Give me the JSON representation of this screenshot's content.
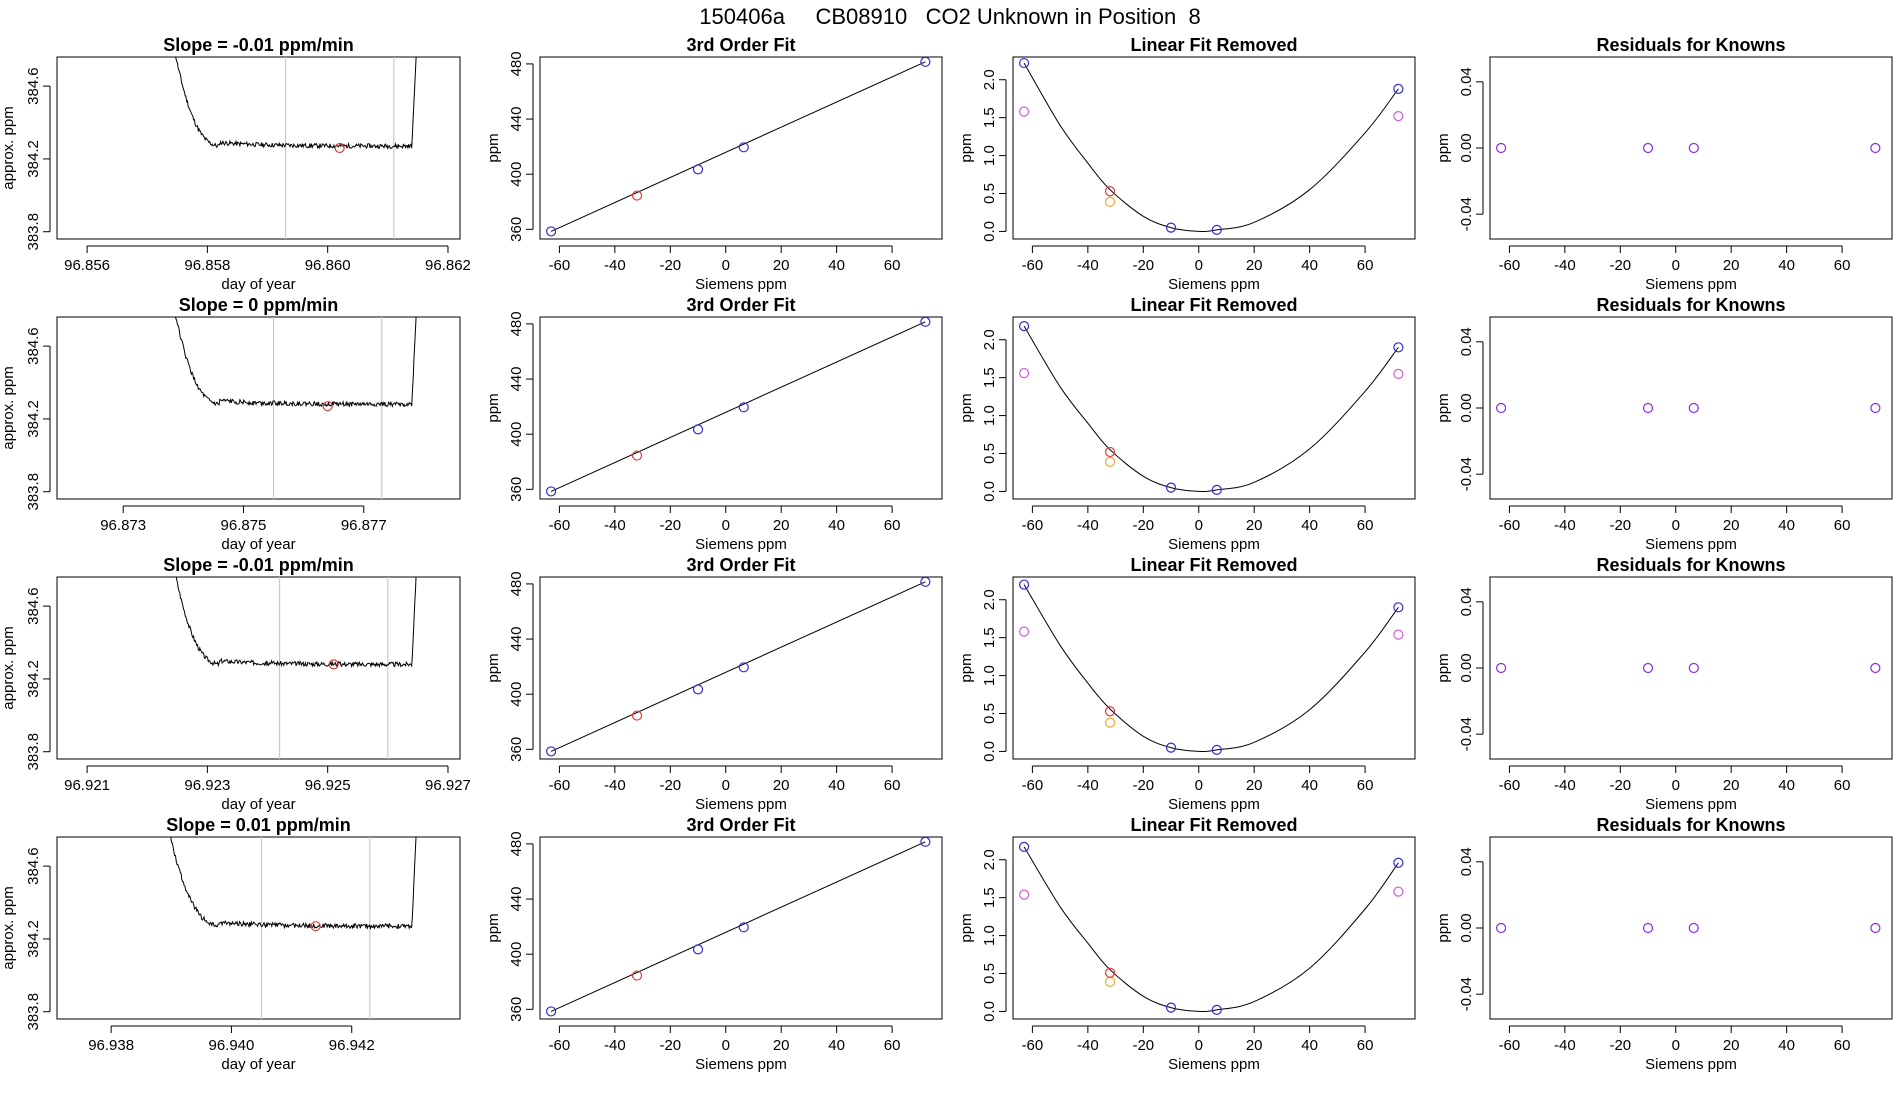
{
  "page": {
    "title": "150406a     CB08910   CO2 Unknown in Position  8"
  },
  "colors": {
    "axis": "#000000",
    "trace": "#000000",
    "vline": "#c8c8c8",
    "red": "#e33b3b",
    "blue": "#2f2fd0",
    "orange": "#f0a830",
    "magenta": "#d060e0",
    "purple": "#8a2be2"
  },
  "chart_data": [
    {
      "type": "line",
      "row": 0,
      "col": 0,
      "panel": "timeseries",
      "title": "Slope =  -0.01  ppm/min",
      "xlabel": "day of year",
      "ylabel": "approx. ppm",
      "xlim": [
        96.8555,
        96.8622
      ],
      "ylim": [
        383.76,
        384.76
      ],
      "xticks": [
        96.856,
        96.858,
        96.86,
        96.862
      ],
      "xtick_labels": [
        "96.856",
        "96.858",
        "96.860",
        "96.862"
      ],
      "yticks": [
        383.8,
        384.2,
        384.6
      ],
      "ytick_labels": [
        "383.8",
        "384.2",
        "384.6"
      ],
      "trace_start": 96.8574,
      "trace_end": 96.8615,
      "plateau_start": 96.8582,
      "rise_start": 96.8614,
      "plateau": 384.27,
      "vlines": [
        96.8593,
        96.8611
      ],
      "marker": {
        "x": 96.8602,
        "y": 384.26
      }
    },
    {
      "type": "scatter",
      "row": 0,
      "col": 1,
      "panel": "fit3",
      "title": "3rd Order Fit",
      "xlabel": "Siemens ppm",
      "ylabel": "ppm",
      "xlim": [
        -67,
        78
      ],
      "ylim": [
        353,
        485
      ],
      "xticks": [
        -60,
        -40,
        -20,
        0,
        20,
        40,
        60
      ],
      "xtick_labels": [
        "-60",
        "-40",
        "-20",
        "0",
        "20",
        "40",
        "60"
      ],
      "yticks": [
        360,
        400,
        440,
        480
      ],
      "ytick_labels": [
        "360",
        "400",
        "440",
        "480"
      ],
      "line": {
        "x": [
          -63,
          72
        ],
        "y": [
          358.5,
          481.5
        ]
      },
      "points_blue": {
        "x": [
          -63,
          -10,
          6.5,
          72
        ],
        "y": [
          358.5,
          403.5,
          419.5,
          481.5
        ]
      },
      "points_red": {
        "x": [
          -32
        ],
        "y": [
          384.5
        ]
      }
    },
    {
      "type": "scatter",
      "row": 0,
      "col": 2,
      "panel": "linfit",
      "title": "Linear Fit Removed",
      "xlabel": "Siemens ppm",
      "ylabel": "ppm",
      "xlim": [
        -67,
        78
      ],
      "ylim": [
        -0.1,
        2.3
      ],
      "xticks": [
        -60,
        -40,
        -20,
        0,
        20,
        40,
        60
      ],
      "xtick_labels": [
        "-60",
        "-40",
        "-20",
        "0",
        "20",
        "40",
        "60"
      ],
      "yticks": [
        0,
        0.5,
        1,
        1.5,
        2
      ],
      "ytick_labels": [
        "0.0",
        "0.5",
        "1.0",
        "1.5",
        "2.0"
      ],
      "curve": {
        "x": [
          -63,
          -50,
          -40,
          -32,
          -20,
          -10,
          0,
          6.5,
          20,
          40,
          60,
          72
        ],
        "y": [
          2.22,
          1.4,
          0.9,
          0.55,
          0.2,
          0.05,
          0.0,
          0.02,
          0.12,
          0.55,
          1.3,
          1.88
        ]
      },
      "points_blue": {
        "x": [
          -63,
          -10,
          6.5,
          72
        ],
        "y": [
          2.22,
          0.05,
          0.02,
          1.88
        ]
      },
      "points_red": {
        "x": [
          -32
        ],
        "y": [
          0.53
        ]
      },
      "points_orange": {
        "x": [
          -32
        ],
        "y": [
          0.39
        ]
      },
      "points_magenta": {
        "x": [
          -63,
          72
        ],
        "y": [
          1.58,
          1.52
        ]
      }
    },
    {
      "type": "scatter",
      "row": 0,
      "col": 3,
      "panel": "resid",
      "title": "Residuals for Knowns",
      "xlabel": "Siemens ppm",
      "ylabel": "ppm",
      "xlim": [
        -67,
        78
      ],
      "ylim": [
        -0.055,
        0.055
      ],
      "xticks": [
        -60,
        -40,
        -20,
        0,
        20,
        40,
        60
      ],
      "xtick_labels": [
        "-60",
        "-40",
        "-20",
        "0",
        "20",
        "40",
        "60"
      ],
      "yticks": [
        -0.04,
        0,
        0.04
      ],
      "ytick_labels": [
        "-0.04",
        "0.00",
        "0.04"
      ],
      "points_purple": {
        "x": [
          -63,
          -10,
          6.5,
          72
        ],
        "y": [
          0,
          0,
          0,
          0
        ]
      }
    },
    {
      "type": "line",
      "row": 1,
      "col": 0,
      "panel": "timeseries",
      "title": "Slope =  0  ppm/min",
      "xlabel": "day of year",
      "ylabel": "approx. ppm",
      "xlim": [
        96.8719,
        96.8786
      ],
      "ylim": [
        383.76,
        384.76
      ],
      "xticks": [
        96.873,
        96.875,
        96.877
      ],
      "xtick_labels": [
        "96.873",
        "96.875",
        "96.877"
      ],
      "yticks": [
        383.8,
        384.2,
        384.6
      ],
      "ytick_labels": [
        "383.8",
        "384.2",
        "384.6"
      ],
      "trace_start": 96.8738,
      "trace_end": 96.8779,
      "plateau_start": 96.8746,
      "rise_start": 96.8778,
      "plateau": 384.28,
      "vlines": [
        96.8755,
        96.8773
      ],
      "marker": {
        "x": 96.8764,
        "y": 384.27
      }
    },
    {
      "type": "scatter",
      "row": 1,
      "col": 1,
      "panel": "fit3",
      "title": "3rd Order Fit",
      "xlabel": "Siemens ppm",
      "ylabel": "ppm",
      "xlim": [
        -67,
        78
      ],
      "ylim": [
        353,
        485
      ],
      "xticks": [
        -60,
        -40,
        -20,
        0,
        20,
        40,
        60
      ],
      "xtick_labels": [
        "-60",
        "-40",
        "-20",
        "0",
        "20",
        "40",
        "60"
      ],
      "yticks": [
        360,
        400,
        440,
        480
      ],
      "ytick_labels": [
        "360",
        "400",
        "440",
        "480"
      ],
      "line": {
        "x": [
          -63,
          72
        ],
        "y": [
          358.5,
          481.5
        ]
      },
      "points_blue": {
        "x": [
          -63,
          -10,
          6.5,
          72
        ],
        "y": [
          358.5,
          403.5,
          419.5,
          481.5
        ]
      },
      "points_red": {
        "x": [
          -32
        ],
        "y": [
          384.5
        ]
      }
    },
    {
      "type": "scatter",
      "row": 1,
      "col": 2,
      "panel": "linfit",
      "title": "Linear Fit Removed",
      "xlabel": "Siemens ppm",
      "ylabel": "ppm",
      "xlim": [
        -67,
        78
      ],
      "ylim": [
        -0.1,
        2.3
      ],
      "xticks": [
        -60,
        -40,
        -20,
        0,
        20,
        40,
        60
      ],
      "xtick_labels": [
        "-60",
        "-40",
        "-20",
        "0",
        "20",
        "40",
        "60"
      ],
      "yticks": [
        0,
        0.5,
        1,
        1.5,
        2
      ],
      "ytick_labels": [
        "0.0",
        "0.5",
        "1.0",
        "1.5",
        "2.0"
      ],
      "curve": {
        "x": [
          -63,
          -50,
          -40,
          -32,
          -20,
          -10,
          0,
          6.5,
          20,
          40,
          60,
          72
        ],
        "y": [
          2.18,
          1.38,
          0.9,
          0.55,
          0.2,
          0.05,
          0.0,
          0.02,
          0.12,
          0.56,
          1.32,
          1.9
        ]
      },
      "points_blue": {
        "x": [
          -63,
          -10,
          6.5,
          72
        ],
        "y": [
          2.18,
          0.05,
          0.02,
          1.9
        ]
      },
      "points_red": {
        "x": [
          -32
        ],
        "y": [
          0.52
        ]
      },
      "points_orange": {
        "x": [
          -32
        ],
        "y": [
          0.39
        ]
      },
      "points_magenta": {
        "x": [
          -63,
          72
        ],
        "y": [
          1.56,
          1.55
        ]
      }
    },
    {
      "type": "scatter",
      "row": 1,
      "col": 3,
      "panel": "resid",
      "title": "Residuals for Knowns",
      "xlabel": "Siemens ppm",
      "ylabel": "ppm",
      "xlim": [
        -67,
        78
      ],
      "ylim": [
        -0.055,
        0.055
      ],
      "xticks": [
        -60,
        -40,
        -20,
        0,
        20,
        40,
        60
      ],
      "xtick_labels": [
        "-60",
        "-40",
        "-20",
        "0",
        "20",
        "40",
        "60"
      ],
      "yticks": [
        -0.04,
        0,
        0.04
      ],
      "ytick_labels": [
        "-0.04",
        "0.00",
        "0.04"
      ],
      "points_purple": {
        "x": [
          -63,
          -10,
          6.5,
          72
        ],
        "y": [
          0,
          0,
          0,
          0
        ]
      }
    },
    {
      "type": "line",
      "row": 2,
      "col": 0,
      "panel": "timeseries",
      "title": "Slope =  -0.01  ppm/min",
      "xlabel": "day of year",
      "ylabel": "approx. ppm",
      "xlim": [
        96.9205,
        96.9272
      ],
      "ylim": [
        383.76,
        384.76
      ],
      "xticks": [
        96.921,
        96.923,
        96.925,
        96.927
      ],
      "xtick_labels": [
        "96.921",
        "96.923",
        "96.925",
        "96.927"
      ],
      "yticks": [
        383.8,
        384.2,
        384.6
      ],
      "ytick_labels": [
        "383.8",
        "384.2",
        "384.6"
      ],
      "trace_start": 96.9224,
      "trace_end": 96.9265,
      "plateau_start": 96.9232,
      "rise_start": 96.9264,
      "plateau": 384.28,
      "vlines": [
        96.9242,
        96.926
      ],
      "marker": {
        "x": 96.9251,
        "y": 384.28
      }
    },
    {
      "type": "scatter",
      "row": 2,
      "col": 1,
      "panel": "fit3",
      "title": "3rd Order Fit",
      "xlabel": "Siemens ppm",
      "ylabel": "ppm",
      "xlim": [
        -67,
        78
      ],
      "ylim": [
        353,
        485
      ],
      "xticks": [
        -60,
        -40,
        -20,
        0,
        20,
        40,
        60
      ],
      "xtick_labels": [
        "-60",
        "-40",
        "-20",
        "0",
        "20",
        "40",
        "60"
      ],
      "yticks": [
        360,
        400,
        440,
        480
      ],
      "ytick_labels": [
        "360",
        "400",
        "440",
        "480"
      ],
      "line": {
        "x": [
          -63,
          72
        ],
        "y": [
          358.5,
          481.5
        ]
      },
      "points_blue": {
        "x": [
          -63,
          -10,
          6.5,
          72
        ],
        "y": [
          358.5,
          403.5,
          419.5,
          481.5
        ]
      },
      "points_red": {
        "x": [
          -32
        ],
        "y": [
          384.5
        ]
      }
    },
    {
      "type": "scatter",
      "row": 2,
      "col": 2,
      "panel": "linfit",
      "title": "Linear Fit Removed",
      "xlabel": "Siemens ppm",
      "ylabel": "ppm",
      "xlim": [
        -67,
        78
      ],
      "ylim": [
        -0.1,
        2.3
      ],
      "xticks": [
        -60,
        -40,
        -20,
        0,
        20,
        40,
        60
      ],
      "xtick_labels": [
        "-60",
        "-40",
        "-20",
        "0",
        "20",
        "40",
        "60"
      ],
      "yticks": [
        0,
        0.5,
        1,
        1.5,
        2
      ],
      "ytick_labels": [
        "0.0",
        "0.5",
        "1.0",
        "1.5",
        "2.0"
      ],
      "curve": {
        "x": [
          -63,
          -50,
          -40,
          -32,
          -20,
          -10,
          0,
          6.5,
          20,
          40,
          60,
          72
        ],
        "y": [
          2.2,
          1.4,
          0.9,
          0.56,
          0.2,
          0.05,
          0.0,
          0.02,
          0.12,
          0.55,
          1.31,
          1.9
        ]
      },
      "points_blue": {
        "x": [
          -63,
          -10,
          6.5,
          72
        ],
        "y": [
          2.2,
          0.05,
          0.02,
          1.9
        ]
      },
      "points_red": {
        "x": [
          -32
        ],
        "y": [
          0.53
        ]
      },
      "points_orange": {
        "x": [
          -32
        ],
        "y": [
          0.38
        ]
      },
      "points_magenta": {
        "x": [
          -63,
          72
        ],
        "y": [
          1.58,
          1.54
        ]
      }
    },
    {
      "type": "scatter",
      "row": 2,
      "col": 3,
      "panel": "resid",
      "title": "Residuals for Knowns",
      "xlabel": "Siemens ppm",
      "ylabel": "ppm",
      "xlim": [
        -67,
        78
      ],
      "ylim": [
        -0.055,
        0.055
      ],
      "xticks": [
        -60,
        -40,
        -20,
        0,
        20,
        40,
        60
      ],
      "xtick_labels": [
        "-60",
        "-40",
        "-20",
        "0",
        "20",
        "40",
        "60"
      ],
      "yticks": [
        -0.04,
        0,
        0.04
      ],
      "ytick_labels": [
        "-0.04",
        "0.00",
        "0.04"
      ],
      "points_purple": {
        "x": [
          -63,
          -10,
          6.5,
          72
        ],
        "y": [
          0,
          0,
          0,
          0
        ]
      }
    },
    {
      "type": "line",
      "row": 3,
      "col": 0,
      "panel": "timeseries",
      "title": "Slope =  0.01  ppm/min",
      "xlabel": "day of year",
      "ylabel": "approx. ppm",
      "xlim": [
        96.9371,
        96.9438
      ],
      "ylim": [
        383.76,
        384.76
      ],
      "xticks": [
        96.938,
        96.94,
        96.942
      ],
      "xtick_labels": [
        "96.938",
        "96.940",
        "96.942"
      ],
      "yticks": [
        383.8,
        384.2,
        384.6
      ],
      "ytick_labels": [
        "383.8",
        "384.2",
        "384.6"
      ],
      "trace_start": 96.9389,
      "trace_end": 96.9431,
      "plateau_start": 96.9398,
      "rise_start": 96.943,
      "plateau": 384.27,
      "vlines": [
        96.9405,
        96.9423
      ],
      "marker": {
        "x": 96.9414,
        "y": 384.27
      }
    },
    {
      "type": "scatter",
      "row": 3,
      "col": 1,
      "panel": "fit3",
      "title": "3rd Order Fit",
      "xlabel": "Siemens ppm",
      "ylabel": "ppm",
      "xlim": [
        -67,
        78
      ],
      "ylim": [
        353,
        485
      ],
      "xticks": [
        -60,
        -40,
        -20,
        0,
        20,
        40,
        60
      ],
      "xtick_labels": [
        "-60",
        "-40",
        "-20",
        "0",
        "20",
        "40",
        "60"
      ],
      "yticks": [
        360,
        400,
        440,
        480
      ],
      "ytick_labels": [
        "360",
        "400",
        "440",
        "480"
      ],
      "line": {
        "x": [
          -63,
          72
        ],
        "y": [
          358.5,
          481.5
        ]
      },
      "points_blue": {
        "x": [
          -63,
          -10,
          6.5,
          72
        ],
        "y": [
          358.5,
          403.5,
          419.5,
          481.5
        ]
      },
      "points_red": {
        "x": [
          -32
        ],
        "y": [
          384.5
        ]
      }
    },
    {
      "type": "scatter",
      "row": 3,
      "col": 2,
      "panel": "linfit",
      "title": "Linear Fit Removed",
      "xlabel": "Siemens ppm",
      "ylabel": "ppm",
      "xlim": [
        -67,
        78
      ],
      "ylim": [
        -0.1,
        2.3
      ],
      "xticks": [
        -60,
        -40,
        -20,
        0,
        20,
        40,
        60
      ],
      "xtick_labels": [
        "-60",
        "-40",
        "-20",
        "0",
        "20",
        "40",
        "60"
      ],
      "yticks": [
        0,
        0.5,
        1,
        1.5,
        2
      ],
      "ytick_labels": [
        "0.0",
        "0.5",
        "1.0",
        "1.5",
        "2.0"
      ],
      "curve": {
        "x": [
          -63,
          -50,
          -40,
          -32,
          -20,
          -10,
          0,
          6.5,
          20,
          40,
          60,
          72
        ],
        "y": [
          2.17,
          1.38,
          0.9,
          0.55,
          0.2,
          0.05,
          0.0,
          0.02,
          0.13,
          0.57,
          1.35,
          1.96
        ]
      },
      "points_blue": {
        "x": [
          -63,
          -10,
          6.5,
          72
        ],
        "y": [
          2.17,
          0.05,
          0.02,
          1.96
        ]
      },
      "points_red": {
        "x": [
          -32
        ],
        "y": [
          0.51
        ]
      },
      "points_orange": {
        "x": [
          -32
        ],
        "y": [
          0.39
        ]
      },
      "points_magenta": {
        "x": [
          -63,
          72
        ],
        "y": [
          1.54,
          1.58
        ]
      }
    },
    {
      "type": "scatter",
      "row": 3,
      "col": 3,
      "panel": "resid",
      "title": "Residuals for Knowns",
      "xlabel": "Siemens ppm",
      "ylabel": "ppm",
      "xlim": [
        -67,
        78
      ],
      "ylim": [
        -0.055,
        0.055
      ],
      "xticks": [
        -60,
        -40,
        -20,
        0,
        20,
        40,
        60
      ],
      "xtick_labels": [
        "-60",
        "-40",
        "-20",
        "0",
        "20",
        "40",
        "60"
      ],
      "yticks": [
        -0.04,
        0,
        0.04
      ],
      "ytick_labels": [
        "-0.04",
        "0.00",
        "0.04"
      ],
      "points_purple": {
        "x": [
          -63,
          -10,
          6.5,
          72
        ],
        "y": [
          0,
          0,
          0,
          0
        ]
      }
    }
  ]
}
